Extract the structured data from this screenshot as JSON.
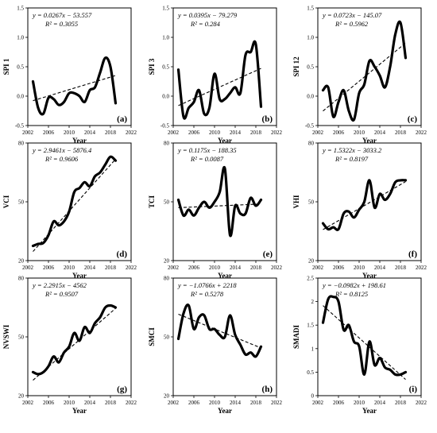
{
  "chart_data": [
    {
      "type": "line",
      "ylabel": "SPI 1",
      "xlabel": "Year",
      "equation": "y = 0.0267x − 53.557",
      "r2": "R² = 0.3055",
      "panel": "(a)",
      "xlim": [
        2002,
        2022
      ],
      "xticks": [
        2002,
        2006,
        2010,
        2014,
        2018,
        2022
      ],
      "ylim": [
        -0.5,
        1.5
      ],
      "yticks": [
        -0.5,
        0.0,
        0.5,
        1.0,
        1.5
      ],
      "ytick_labels": [
        "-0.5",
        "0.0",
        "0.5",
        "1.0",
        "1.5"
      ],
      "series": [
        {
          "x": [
            2003,
            2004,
            2005,
            2006,
            2007,
            2008,
            2009,
            2010,
            2011,
            2012,
            2013,
            2014,
            2015,
            2016,
            2017,
            2018,
            2019
          ],
          "values": [
            0.25,
            -0.2,
            -0.3,
            -0.03,
            -0.05,
            -0.15,
            -0.1,
            0.05,
            0.05,
            0.0,
            -0.1,
            0.1,
            0.15,
            0.4,
            0.65,
            0.5,
            -0.12
          ]
        }
      ],
      "trend": {
        "slope": 0.0267,
        "intercept": -53.557,
        "x": [
          2003,
          2019
        ]
      }
    },
    {
      "type": "line",
      "ylabel": "SPI 3",
      "xlabel": "Year",
      "equation": "y = 0.0395x − 79.279",
      "r2": "R² = 0.284",
      "panel": "(b)",
      "xlim": [
        2002,
        2022
      ],
      "xticks": [
        2002,
        2006,
        2010,
        2014,
        2018,
        2022
      ],
      "ylim": [
        -0.5,
        1.5
      ],
      "yticks": [
        -0.5,
        0.0,
        0.5,
        1.0,
        1.5
      ],
      "ytick_labels": [
        "-0.5",
        "0.0",
        "0.5",
        "1.0",
        "1.5"
      ],
      "series": [
        {
          "x": [
            2003,
            2004,
            2005,
            2006,
            2007,
            2008,
            2009,
            2010,
            2011,
            2012,
            2013,
            2014,
            2015,
            2016,
            2017,
            2018,
            2019
          ],
          "values": [
            0.45,
            -0.35,
            -0.2,
            -0.1,
            0.1,
            -0.3,
            -0.2,
            0.38,
            -0.05,
            -0.05,
            0.05,
            0.15,
            0.05,
            0.7,
            0.75,
            0.88,
            -0.18
          ]
        }
      ],
      "trend": {
        "slope": 0.0395,
        "intercept": -79.279,
        "x": [
          2003,
          2019
        ]
      }
    },
    {
      "type": "line",
      "ylabel": "SPI 12",
      "xlabel": "Year",
      "equation": "y = 0.0723x − 145.07",
      "r2": "R² = 0.5962",
      "panel": "(c)",
      "xlim": [
        2002,
        2022
      ],
      "xticks": [
        2002,
        2006,
        2010,
        2014,
        2018,
        2022
      ],
      "ylim": [
        -0.5,
        1.5
      ],
      "yticks": [
        -0.5,
        0.0,
        0.5,
        1.0,
        1.5
      ],
      "ytick_labels": [
        "-0.5",
        "0.0",
        "0.5",
        "1.0",
        "1.5"
      ],
      "series": [
        {
          "x": [
            2003,
            2004,
            2005,
            2006,
            2007,
            2008,
            2009,
            2010,
            2011,
            2012,
            2013,
            2014,
            2015,
            2016,
            2017,
            2018,
            2019
          ],
          "values": [
            0.1,
            0.15,
            -0.35,
            -0.1,
            0.1,
            -0.25,
            -0.4,
            0.05,
            0.2,
            0.6,
            0.5,
            0.35,
            0.15,
            0.5,
            1.05,
            1.25,
            0.65
          ]
        }
      ],
      "trend": {
        "slope": 0.0723,
        "intercept": -145.07,
        "x": [
          2003,
          2019
        ]
      }
    },
    {
      "type": "line",
      "ylabel": "VCI",
      "xlabel": "Year",
      "equation": "y = 2.9461x − 5876.4",
      "r2": "R² = 0.9606",
      "panel": "(d)",
      "xlim": [
        2002,
        2022
      ],
      "xticks": [
        2002,
        2006,
        2010,
        2014,
        2018,
        2022
      ],
      "ylim": [
        20,
        80
      ],
      "yticks": [
        20,
        50,
        80
      ],
      "ytick_labels": [
        "20",
        "50",
        "80"
      ],
      "series": [
        {
          "x": [
            2003,
            2004,
            2005,
            2006,
            2007,
            2008,
            2009,
            2010,
            2011,
            2012,
            2013,
            2014,
            2015,
            2016,
            2017,
            2018,
            2019
          ],
          "values": [
            27.5,
            28.5,
            29,
            33,
            40,
            38,
            40,
            45,
            55,
            57,
            60,
            58,
            63,
            65,
            69,
            73,
            71
          ]
        }
      ],
      "trend": {
        "slope": 2.9461,
        "intercept": -5876.4,
        "x": [
          2003,
          2019
        ]
      }
    },
    {
      "type": "line",
      "ylabel": "TCI",
      "xlabel": "Year",
      "equation": "y = 0.1175x − 188.35",
      "r2": "R² = 0.0087",
      "panel": "(e)",
      "xlim": [
        2002,
        2022
      ],
      "xticks": [
        2002,
        2006,
        2010,
        2014,
        2018,
        2022
      ],
      "ylim": [
        20,
        80
      ],
      "yticks": [
        20,
        50,
        80
      ],
      "ytick_labels": [
        "20",
        "50",
        "80"
      ],
      "series": [
        {
          "x": [
            2003,
            2004,
            2005,
            2006,
            2007,
            2008,
            2009,
            2010,
            2011,
            2012,
            2013,
            2014,
            2015,
            2016,
            2017,
            2018,
            2019
          ],
          "values": [
            51,
            43,
            46,
            43,
            47,
            50,
            47,
            50,
            55,
            67,
            33,
            48,
            44,
            44,
            52,
            48,
            51
          ]
        }
      ],
      "trend": {
        "slope": 0.1175,
        "intercept": -188.35,
        "x": [
          2003,
          2019
        ]
      }
    },
    {
      "type": "line",
      "ylabel": "VHI",
      "xlabel": "Year",
      "equation": "y = 1.5322x − 3033.2",
      "r2": "R² = 0.8197",
      "panel": "(f)",
      "xlim": [
        2002,
        2022
      ],
      "xticks": [
        2002,
        2006,
        2010,
        2014,
        2018,
        2022
      ],
      "ylim": [
        20,
        80
      ],
      "yticks": [
        20,
        50,
        80
      ],
      "ytick_labels": [
        "20",
        "50",
        "80"
      ],
      "series": [
        {
          "x": [
            2003,
            2004,
            2005,
            2006,
            2007,
            2008,
            2009,
            2010,
            2011,
            2012,
            2013,
            2014,
            2015,
            2016,
            2017,
            2018,
            2019
          ],
          "values": [
            39,
            36,
            37,
            36,
            44,
            45,
            42,
            46,
            50,
            61,
            47,
            54,
            51,
            54,
            60,
            61,
            61
          ]
        }
      ],
      "trend": {
        "slope": 1.5322,
        "intercept": -3033.2,
        "x": [
          2003,
          2019
        ]
      }
    },
    {
      "type": "line",
      "ylabel": "NVSWI",
      "xlabel": "Year",
      "equation": "y = 2.2915x − 4562",
      "r2": "R² = 0.9507",
      "panel": "(g)",
      "xlim": [
        2002,
        2022
      ],
      "xticks": [
        2002,
        2006,
        2010,
        2014,
        2018,
        2022
      ],
      "ylim": [
        20,
        80
      ],
      "yticks": [
        20,
        50,
        80
      ],
      "ytick_labels": [
        "20",
        "50",
        "80"
      ],
      "series": [
        {
          "x": [
            2003,
            2004,
            2005,
            2006,
            2007,
            2008,
            2009,
            2010,
            2011,
            2012,
            2013,
            2014,
            2015,
            2016,
            2017,
            2018,
            2019
          ],
          "values": [
            32,
            31,
            32,
            35,
            40,
            37,
            42,
            45,
            52,
            48,
            55,
            52,
            57,
            60,
            65,
            66,
            65
          ]
        }
      ],
      "trend": {
        "slope": 2.2915,
        "intercept": -4562,
        "x": [
          2003,
          2019
        ]
      }
    },
    {
      "type": "line",
      "ylabel": "SMCI",
      "xlabel": "Year",
      "equation": "y = −1.0766x + 2218",
      "r2": "R² = 0.5278",
      "panel": "(h)",
      "xlim": [
        2002,
        2022
      ],
      "xticks": [
        2002,
        2006,
        2010,
        2014,
        2018,
        2022
      ],
      "ylim": [
        20,
        80
      ],
      "yticks": [
        20,
        50,
        80
      ],
      "ytick_labels": [
        "20",
        "50",
        "80"
      ],
      "series": [
        {
          "x": [
            2003,
            2004,
            2005,
            2006,
            2007,
            2008,
            2009,
            2010,
            2011,
            2012,
            2013,
            2014,
            2015,
            2016,
            2017,
            2018,
            2019
          ],
          "values": [
            49,
            62,
            66,
            54,
            60,
            61,
            54,
            54,
            51,
            50,
            61,
            51,
            46,
            41,
            42,
            40,
            45
          ]
        }
      ],
      "trend": {
        "slope": -1.0766,
        "intercept": 2218,
        "x": [
          2003,
          2019
        ]
      }
    },
    {
      "type": "line",
      "ylabel": "SMADI",
      "xlabel": "Year",
      "equation": "y = −0.0982x + 198.61",
      "r2": "R² = 0.8125",
      "panel": "(i)",
      "xlim": [
        2002,
        2022
      ],
      "xticks": [
        2002,
        2006,
        2010,
        2014,
        2018,
        2022
      ],
      "ylim": [
        0,
        2.5
      ],
      "yticks": [
        0,
        0.5,
        1,
        1.5,
        2,
        2.5
      ],
      "ytick_labels": [
        "0",
        "0.5",
        "1",
        "1.5",
        "2",
        "2.5"
      ],
      "series": [
        {
          "x": [
            2003,
            2004,
            2005,
            2006,
            2007,
            2008,
            2009,
            2010,
            2011,
            2012,
            2013,
            2014,
            2015,
            2016,
            2017,
            2018,
            2019
          ],
          "values": [
            1.55,
            2.05,
            2.1,
            2.0,
            1.4,
            1.5,
            1.15,
            1.05,
            0.45,
            1.15,
            0.65,
            0.8,
            0.6,
            0.55,
            0.45,
            0.45,
            0.5
          ]
        }
      ],
      "trend": {
        "slope": -0.0982,
        "intercept": 198.61,
        "x": [
          2003,
          2019
        ]
      }
    }
  ]
}
